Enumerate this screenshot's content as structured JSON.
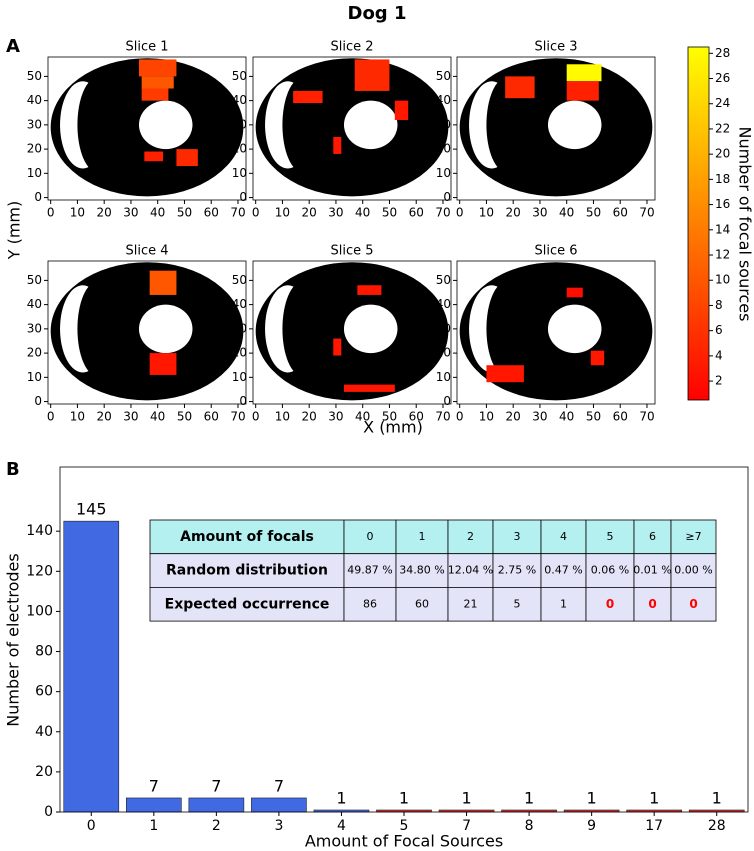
{
  "title": "Dog 1",
  "panel_labels": [
    "A",
    "B"
  ],
  "chart_data": [
    {
      "type": "heatmap",
      "xlabel": "X (mm)",
      "ylabel": "Y (mm)",
      "xlim": [
        -1,
        73
      ],
      "ylim": [
        -1,
        58
      ],
      "xticks": [
        0,
        10,
        20,
        30,
        40,
        50,
        60,
        70
      ],
      "yticks": [
        0,
        10,
        20,
        30,
        40,
        50
      ],
      "colorbar": {
        "label": "Number of focal sources",
        "colormap": "autumn",
        "lim": [
          0.5,
          28.5
        ],
        "ticks": [
          2,
          4,
          6,
          8,
          10,
          12,
          14,
          16,
          18,
          20,
          22,
          24,
          26,
          28
        ]
      },
      "slices": [
        {
          "title": "Slice 1",
          "regions": [
            {
              "x": [
                33,
                47
              ],
              "y": [
                50,
                57
              ],
              "value": 8
            },
            {
              "x": [
                34,
                46
              ],
              "y": [
                45,
                50
              ],
              "value": 10
            },
            {
              "x": [
                34,
                44
              ],
              "y": [
                40,
                45
              ],
              "value": 7
            },
            {
              "x": [
                35,
                42
              ],
              "y": [
                15,
                19
              ],
              "value": 4
            },
            {
              "x": [
                47,
                55
              ],
              "y": [
                13,
                20
              ],
              "value": 5
            }
          ]
        },
        {
          "title": "Slice 2",
          "regions": [
            {
              "x": [
                14,
                25
              ],
              "y": [
                39,
                44
              ],
              "value": 4
            },
            {
              "x": [
                37,
                50
              ],
              "y": [
                44,
                57
              ],
              "value": 5
            },
            {
              "x": [
                52,
                57
              ],
              "y": [
                32,
                40
              ],
              "value": 3
            },
            {
              "x": [
                29,
                32
              ],
              "y": [
                18,
                25
              ],
              "value": 3
            }
          ]
        },
        {
          "title": "Slice 3",
          "regions": [
            {
              "x": [
                17,
                28
              ],
              "y": [
                41,
                50
              ],
              "value": 5
            },
            {
              "x": [
                40,
                53
              ],
              "y": [
                48,
                55
              ],
              "value": 28
            },
            {
              "x": [
                40,
                52
              ],
              "y": [
                40,
                48
              ],
              "value": 4
            }
          ]
        },
        {
          "title": "Slice 4",
          "regions": [
            {
              "x": [
                37,
                47
              ],
              "y": [
                44,
                54
              ],
              "value": 10
            },
            {
              "x": [
                37,
                47
              ],
              "y": [
                11,
                20
              ],
              "value": 3
            }
          ]
        },
        {
          "title": "Slice 5",
          "regions": [
            {
              "x": [
                38,
                47
              ],
              "y": [
                44,
                48
              ],
              "value": 3
            },
            {
              "x": [
                29,
                32
              ],
              "y": [
                19,
                26
              ],
              "value": 3
            },
            {
              "x": [
                33,
                52
              ],
              "y": [
                4,
                7
              ],
              "value": 3
            }
          ]
        },
        {
          "title": "Slice 6",
          "regions": [
            {
              "x": [
                40,
                46
              ],
              "y": [
                43,
                47
              ],
              "value": 2
            },
            {
              "x": [
                10,
                24
              ],
              "y": [
                8,
                15
              ],
              "value": 3
            },
            {
              "x": [
                49,
                54
              ],
              "y": [
                15,
                21
              ],
              "value": 3
            }
          ]
        }
      ]
    },
    {
      "type": "bar",
      "xlabel": "Amount of Focal Sources",
      "ylabel": "Number of electrodes",
      "categories": [
        "0",
        "1",
        "2",
        "3",
        "4",
        "5",
        "7",
        "8",
        "9",
        "17",
        "28"
      ],
      "values": [
        145,
        7,
        7,
        7,
        1,
        1,
        1,
        1,
        1,
        1,
        1
      ],
      "colors": [
        "#4169e1",
        "#4169e1",
        "#4169e1",
        "#4169e1",
        "#4169e1",
        "#d42a2a",
        "#d42a2a",
        "#d42a2a",
        "#d42a2a",
        "#d42a2a",
        "#d42a2a"
      ],
      "ylim": [
        0,
        172
      ],
      "yticks": [
        0,
        20,
        40,
        60,
        80,
        100,
        120,
        140
      ]
    }
  ],
  "table": {
    "header_color": "#b4f0f0",
    "row_color": "#e4e4f8",
    "highlight_color": "#ff0000",
    "rows": [
      {
        "label": "Amount of focals",
        "cells": [
          "0",
          "1",
          "2",
          "3",
          "4",
          "5",
          "6",
          "≥7"
        ]
      },
      {
        "label": "Random distribution",
        "cells": [
          "49.87 %",
          "34.80 %",
          "12.04 %",
          "2.75 %",
          "0.47 %",
          "0.06 %",
          "0.01 %",
          "0.00 %"
        ]
      },
      {
        "label": "Expected occurrence",
        "cells": [
          "86",
          "60",
          "21",
          "5",
          "1",
          "0",
          "0",
          "0"
        ],
        "highlight": [
          5,
          6,
          7
        ]
      }
    ]
  }
}
